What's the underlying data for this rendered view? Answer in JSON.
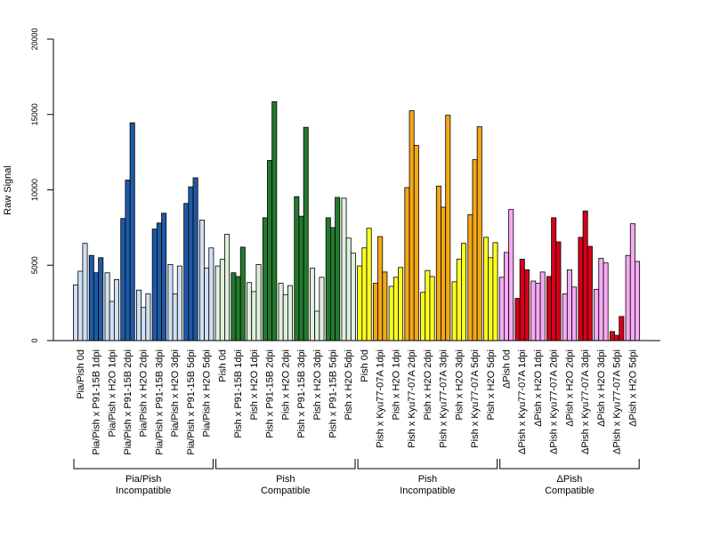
{
  "chart_data": {
    "type": "bar",
    "ylabel": "Raw Signal",
    "ylim": [
      0,
      20000
    ],
    "yticks": [
      0,
      5000,
      10000,
      15000,
      20000
    ],
    "bars_per_category": 3,
    "categories": [
      "Pia/Pish 0d",
      "Pia/Pish x P91-15B 1dpi",
      "Pia/Pish x H2O 1dpi",
      "Pia/Pish x P91-15B 2dpi",
      "Pia/Pish x H2O 2dpi",
      "Pia/Pish x P91-15B 3dpi",
      "Pia/Pish x H2O 3dpi",
      "Pia/Pish x P91-15B 5dpi",
      "Pia/Pish x H2O 5dpi",
      "Pish 0d",
      "Pish x P91-15B 1dpi",
      "Pish x H2O 1dpi",
      "Pish x P91-15B 2dpi",
      "Pish x H2O 2dpi",
      "Pish x P91-15B 3dpi",
      "Pish x H2O 3dpi",
      "Pish x P91-15B 5dpi",
      "Pish x H2O 5dpi",
      "Pish 0d",
      "Pish x Kyu77-07A 1dpi",
      "Pish x H2O 1dpi",
      "Pish x Kyu77-07A 2dpi",
      "Pish x H2O 2dpi",
      "Pish x Kyu77-07A 3dpi",
      "Pish x H2O 3dpi",
      "Pish x Kyu77-07A 5dpi",
      "Pish x H2O 5dpi",
      "ΔPish 0d",
      "ΔPish x Kyu77-07A 1dpi",
      "ΔPish x H2O 1dpi",
      "ΔPish x Kyu77-07A 2dpi",
      "ΔPish x H2O 2dpi",
      "ΔPish x Kyu77-07A 3dpi",
      "ΔPish x H2O 3dpi",
      "ΔPish x Kyu77-07A 5dpi",
      "ΔPish x H2O 5dpi"
    ],
    "values": [
      [
        3700,
        4600,
        6450
      ],
      [
        5650,
        4500,
        5500
      ],
      [
        4500,
        2600,
        4050
      ],
      [
        8100,
        10650,
        14450
      ],
      [
        3350,
        2200,
        3100
      ],
      [
        7400,
        7800,
        8450
      ],
      [
        5050,
        3100,
        4950
      ],
      [
        9100,
        10200,
        10800
      ],
      [
        8000,
        4800,
        6150
      ],
      [
        4950,
        5400,
        7050
      ],
      [
        4500,
        4250,
        6200
      ],
      [
        3850,
        3250,
        5050
      ],
      [
        8150,
        11950,
        15850
      ],
      [
        3800,
        3050,
        3650
      ],
      [
        9550,
        8250,
        14150
      ],
      [
        4800,
        1950,
        4200
      ],
      [
        8150,
        7500,
        9500
      ],
      [
        9450,
        6800,
        5800
      ],
      [
        4950,
        6150,
        7450
      ],
      [
        3800,
        6900,
        4550
      ],
      [
        3600,
        4200,
        4850
      ],
      [
        10150,
        15250,
        12950
      ],
      [
        3200,
        4650,
        4250
      ],
      [
        10250,
        8850,
        14950
      ],
      [
        3900,
        5400,
        6450
      ],
      [
        8350,
        12000,
        14200
      ],
      [
        6850,
        5500,
        6500
      ],
      [
        4200,
        5850,
        8700
      ],
      [
        2800,
        5400,
        4700
      ],
      [
        3950,
        3800,
        4550
      ],
      [
        4250,
        8150,
        6550
      ],
      [
        3100,
        4700,
        3550
      ],
      [
        6850,
        8600,
        6250
      ],
      [
        3400,
        5450,
        5150
      ],
      [
        600,
        350,
        1600
      ],
      [
        5650,
        7750,
        5250
      ]
    ],
    "colors": {
      "light_blue": "#cfe0f3",
      "dark_blue": "#1f5aa6",
      "light_green": "#dff0dc",
      "dark_green": "#237a2e",
      "yellow": "#ffff1f",
      "orange": "#f4a817",
      "pink": "#f7a9f3",
      "red": "#d6001b"
    },
    "category_colors": [
      "light_blue",
      "dark_blue",
      "light_blue",
      "dark_blue",
      "light_blue",
      "dark_blue",
      "light_blue",
      "dark_blue",
      "light_blue",
      "light_green",
      "dark_green",
      "light_green",
      "dark_green",
      "light_green",
      "dark_green",
      "light_green",
      "dark_green",
      "light_green",
      "yellow",
      "orange",
      "yellow",
      "orange",
      "yellow",
      "orange",
      "yellow",
      "orange",
      "yellow",
      "pink",
      "red",
      "pink",
      "red",
      "pink",
      "red",
      "pink",
      "red",
      "pink"
    ],
    "groups": [
      {
        "line1": "Pia/Pish",
        "line2": "Incompatible",
        "start": 0,
        "end": 8
      },
      {
        "line1": "Pish",
        "line2": "Compatible",
        "start": 9,
        "end": 17
      },
      {
        "line1": "Pish",
        "line2": "Incompatible",
        "start": 18,
        "end": 26
      },
      {
        "line1": "ΔPish",
        "line2": "Compatible",
        "start": 27,
        "end": 35
      }
    ],
    "grid": false,
    "legend": "none"
  }
}
